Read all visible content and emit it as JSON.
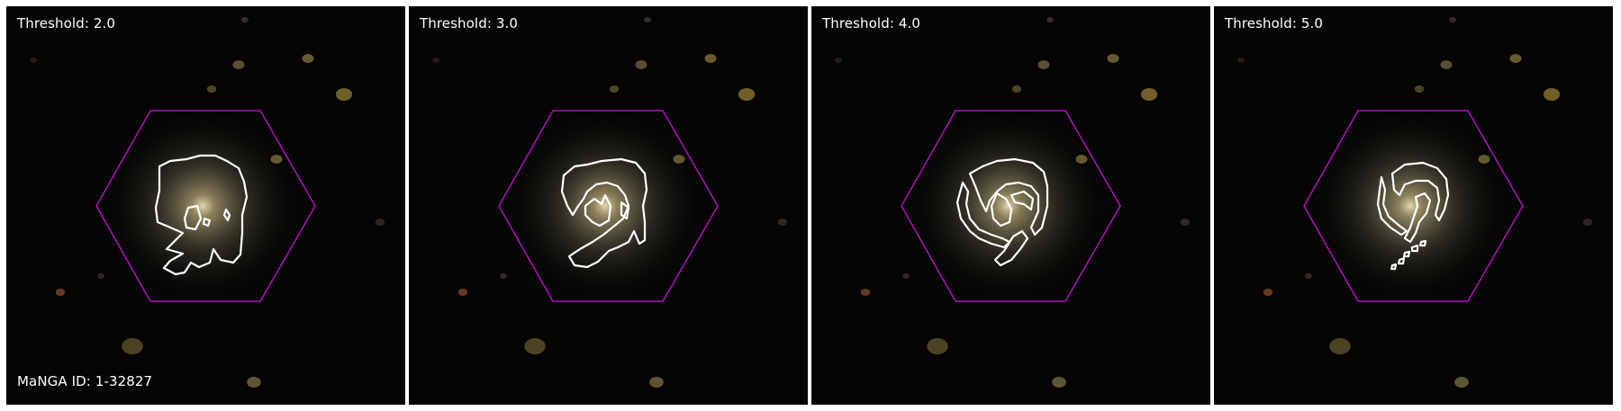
{
  "panels": [
    {
      "threshold_label": "Threshold: 2.0"
    },
    {
      "threshold_label": "Threshold: 3.0"
    },
    {
      "threshold_label": "Threshold: 4.0"
    },
    {
      "threshold_label": "Threshold: 5.0"
    }
  ],
  "manga_id_label": "MaNGA ID: 1-32827",
  "colors": {
    "background": "#060504",
    "hexagon": "#b011c0",
    "contour": "#ffffff",
    "galaxy_core": "#e8d9a8"
  }
}
